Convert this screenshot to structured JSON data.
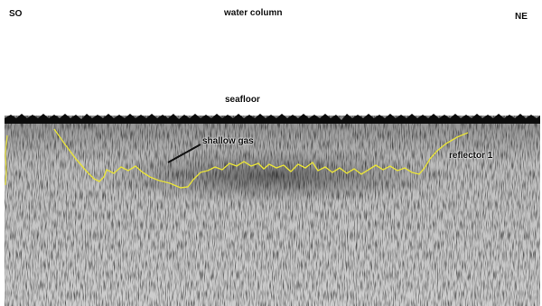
{
  "labels": {
    "left_direction": "SO",
    "right_direction": "NE",
    "water_column": "water column",
    "seafloor": "seafloor",
    "shallow_gas": "shallow gas",
    "reflector": "reflector 1"
  },
  "colors": {
    "background": "#ffffff",
    "seafloor_band": "#0b0b0b",
    "reflector_line": "#e8e23a",
    "annotation_line": "#111111"
  }
}
